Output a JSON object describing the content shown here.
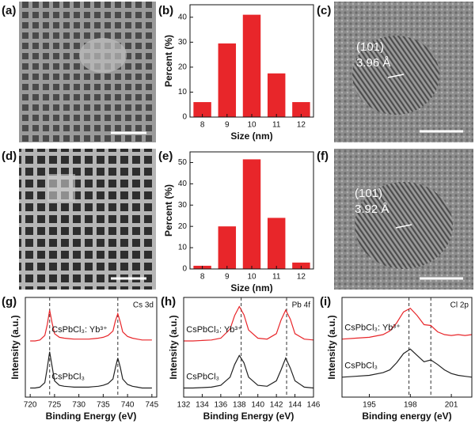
{
  "images": [
    {
      "label": "(a)"
    },
    {
      "label": "(c)",
      "plane": "(101)",
      "spacing": "3.96 Å"
    },
    {
      "label": "(d)"
    },
    {
      "label": "(f)",
      "plane": "(101)",
      "spacing": "3.92 Å"
    }
  ],
  "chart_data": [
    {
      "type": "bar",
      "label": "(b)",
      "x_label": "Size (nm)",
      "y_label": "Percent (%)",
      "color": "#e8262a",
      "categories": [
        "8",
        "9",
        "10",
        "11",
        "12"
      ],
      "values": [
        6,
        29.5,
        41,
        17.5,
        6
      ],
      "ylim": [
        0,
        45
      ],
      "yticks": [
        0,
        10,
        20,
        30,
        40
      ]
    },
    {
      "type": "bar",
      "label": "(e)",
      "x_label": "Size (nm)",
      "y_label": "Percent (%)",
      "color": "#e8262a",
      "categories": [
        "8",
        "9",
        "10",
        "11",
        "12"
      ],
      "values": [
        1.5,
        20,
        51.5,
        24,
        3
      ],
      "ylim": [
        0,
        55
      ],
      "yticks": [
        0,
        10,
        20,
        30,
        40,
        50
      ]
    },
    {
      "type": "line",
      "label": "(g)",
      "annotation": "Cs 3d",
      "x_label": "Binding Energy (eV)",
      "y_label": "Intensity (a.u.)",
      "xlim": [
        719,
        746
      ],
      "xticks": [
        720,
        725,
        730,
        735,
        740,
        745
      ],
      "ylim": [
        0,
        11
      ],
      "vlines": [
        724,
        738
      ],
      "x": [
        720,
        721,
        722,
        723,
        723.5,
        724,
        724.5,
        725,
        726,
        727,
        728,
        729,
        730,
        731,
        732,
        733,
        734,
        735,
        736,
        737,
        737.5,
        738,
        738.5,
        739,
        740,
        741,
        742,
        743,
        744,
        745
      ],
      "series": [
        {
          "name": "CsPbCl₃: Yb³⁺",
          "color": "#e8262a",
          "values": [
            6.2,
            6.2,
            6.3,
            6.8,
            8.0,
            9.6,
            8.2,
            7.0,
            6.6,
            6.5,
            6.45,
            6.4,
            6.4,
            6.4,
            6.4,
            6.45,
            6.5,
            6.6,
            6.8,
            7.3,
            8.4,
            9.2,
            8.3,
            7.2,
            6.7,
            6.5,
            6.4,
            6.3,
            6.3,
            6.3
          ]
        },
        {
          "name": "CsPbCl₃",
          "color": "#222222",
          "values": [
            1.0,
            1.0,
            1.1,
            1.6,
            3.2,
            5.0,
            3.4,
            1.8,
            1.3,
            1.2,
            1.15,
            1.1,
            1.1,
            1.1,
            1.1,
            1.15,
            1.2,
            1.3,
            1.5,
            2.0,
            3.2,
            4.3,
            3.3,
            2.0,
            1.4,
            1.2,
            1.1,
            1.0,
            1.0,
            1.0
          ]
        }
      ]
    },
    {
      "type": "line",
      "label": "(h)",
      "annotation": "Pb 4f",
      "x_label": "Binding Energy (eV)",
      "y_label": "Intensity (a.u.)",
      "xlim": [
        132,
        146
      ],
      "xticks": [
        132,
        134,
        136,
        138,
        140,
        142,
        144,
        146
      ],
      "ylim": [
        0,
        11
      ],
      "vlines": [
        138.2,
        143.1
      ],
      "x": [
        132,
        133,
        134,
        135,
        136,
        137,
        137.5,
        138,
        138.5,
        139,
        140,
        141,
        142,
        142.5,
        143,
        143.5,
        144,
        145,
        146
      ],
      "series": [
        {
          "name": "CsPbCl₃: Yb³⁺",
          "color": "#e8262a",
          "values": [
            6.2,
            6.2,
            6.25,
            6.3,
            6.5,
            7.5,
            9.0,
            10.0,
            9.1,
            7.4,
            6.5,
            6.4,
            7.0,
            8.5,
            9.6,
            8.6,
            7.0,
            6.4,
            6.3
          ]
        },
        {
          "name": "CsPbCl₃",
          "color": "#222222",
          "values": [
            1.0,
            1.0,
            1.05,
            1.1,
            1.3,
            2.2,
            3.6,
            4.6,
            3.8,
            2.2,
            1.3,
            1.2,
            1.8,
            3.0,
            4.3,
            3.2,
            1.8,
            1.1,
            1.0
          ]
        }
      ]
    },
    {
      "type": "line",
      "label": "(i)",
      "annotation": "Cl 2p",
      "x_label": "Binding energy (eV)",
      "y_label": "Intensity (a.u.)",
      "xlim": [
        193,
        202.5
      ],
      "xticks": [
        195,
        198,
        201
      ],
      "ylim": [
        0,
        11
      ],
      "vlines": [
        197.9,
        199.5
      ],
      "x": [
        193,
        194,
        195,
        196,
        196.5,
        197,
        197.5,
        198,
        198.5,
        199,
        199.5,
        200,
        200.5,
        201,
        201.5,
        202,
        202.5
      ],
      "series": [
        {
          "name": "CsPbCl₃: Yb³⁺",
          "color": "#e8262a",
          "values": [
            6.4,
            6.5,
            6.6,
            6.9,
            7.3,
            8.2,
            9.4,
            9.8,
            9.0,
            8.0,
            7.9,
            7.2,
            6.9,
            6.8,
            6.9,
            6.8,
            6.9
          ]
        },
        {
          "name": "CsPbCl₃",
          "color": "#222222",
          "values": [
            2.2,
            2.3,
            2.4,
            2.7,
            3.0,
            3.8,
            4.8,
            5.3,
            4.6,
            3.9,
            4.1,
            3.6,
            3.0,
            2.6,
            2.4,
            2.3,
            2.2
          ]
        }
      ]
    }
  ]
}
